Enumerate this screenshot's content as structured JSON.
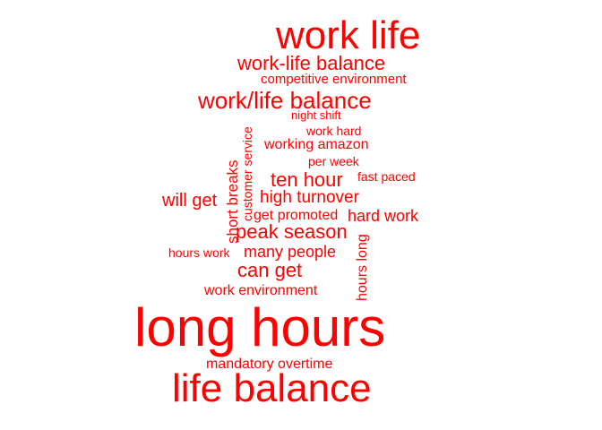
{
  "cloud": {
    "color": "#ff0000",
    "words": {
      "work_life": "work life",
      "work_life_balance": "work-life balance",
      "competitive_environment": "competitive environment",
      "work_slash_life_balance": "work/life balance",
      "night_shift": "night shift",
      "customer_service": "customer service",
      "work_hard": "work hard",
      "working_amazon": "working amazon",
      "per_week": "per week",
      "short_breaks": "short breaks",
      "fast_paced": "fast paced",
      "ten_hour": "ten hour",
      "high_turnover": "high turnover",
      "will_get": "will get",
      "get_promoted": "get promoted",
      "hard_work": "hard work",
      "peak_season": "peak season",
      "hours_long": "hours long",
      "hours_work": "hours work",
      "many_people": "many people",
      "can_get": "can get",
      "work_environment": "work environment",
      "long_hours": "long hours",
      "mandatory_overtime": "mandatory overtime",
      "life_balance": "life balance"
    }
  }
}
